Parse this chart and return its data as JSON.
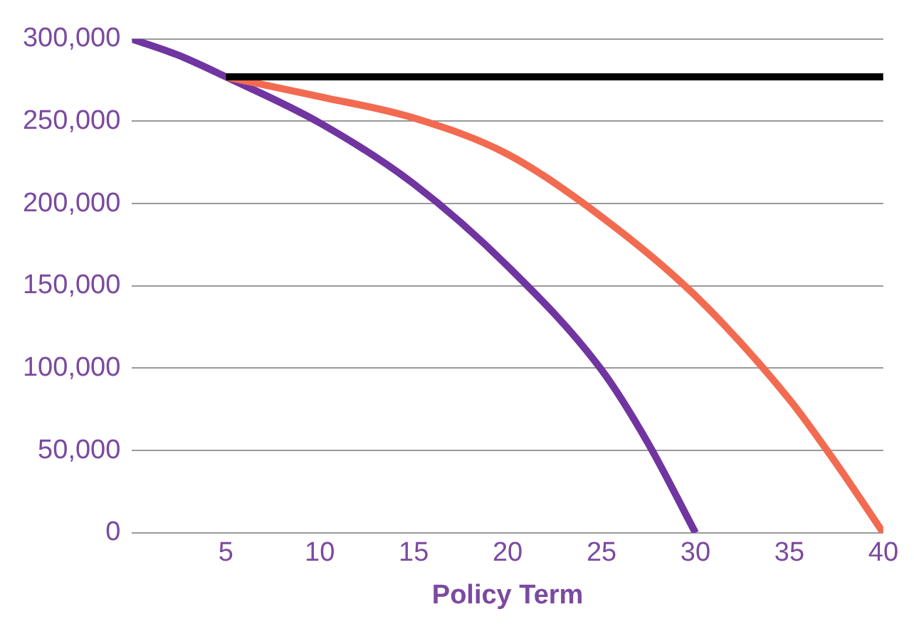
{
  "chart_data": {
    "type": "line",
    "xlabel": "Policy Term",
    "xlim": [
      0,
      40
    ],
    "xticks": [
      5,
      10,
      15,
      20,
      25,
      30,
      35,
      40
    ],
    "ylim": [
      0,
      300000
    ],
    "yticks": [
      0,
      {
        "value": 50000,
        "label": "50,000"
      },
      {
        "value": 100000,
        "label": "100,000"
      },
      {
        "value": 150000,
        "label": "150,000"
      },
      {
        "value": 200000,
        "label": "200,000"
      },
      {
        "value": 250000,
        "label": "250,000"
      },
      {
        "value": 300000,
        "label": "300,000"
      }
    ],
    "grid": "y",
    "legend": false,
    "marker": "none",
    "line_style": "solid",
    "series": [
      {
        "color": "#000000",
        "x": [
          5,
          40
        ],
        "values": [
          277000,
          277000
        ]
      },
      {
        "color": "#f26b50",
        "x": [
          5,
          10,
          15,
          20,
          25,
          30,
          35,
          37.5,
          40
        ],
        "values": [
          277000,
          265000,
          252000,
          230000,
          192000,
          144000,
          81000,
          42000,
          0
        ]
      },
      {
        "color": "#7035a0",
        "x": [
          0,
          2.5,
          5,
          10,
          15,
          20,
          25,
          27.5,
          30
        ],
        "values": [
          300000,
          290000,
          277000,
          249000,
          212000,
          162000,
          99000,
          54000,
          0
        ]
      }
    ]
  }
}
